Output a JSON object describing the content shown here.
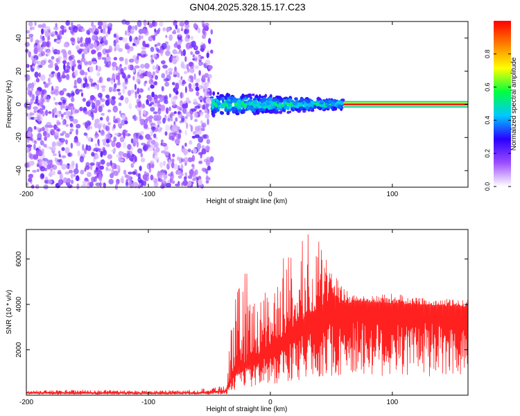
{
  "title": "GN04.2025.328.15.17.C23",
  "chart_data": [
    {
      "type": "heatmap",
      "xlabel": "Height of straight line (km)",
      "ylabel": "Frequency (Hz)",
      "xlim": [
        -200,
        162
      ],
      "ylim": [
        -50,
        50
      ],
      "x_ticks": [
        -200,
        -100,
        0,
        100
      ],
      "y_ticks": [
        -40,
        -20,
        0,
        20,
        40
      ],
      "colorbar": {
        "label": "Normalized spectral amplitude",
        "range": [
          0,
          1
        ],
        "ticks": [
          0.0,
          0.2,
          0.4,
          0.6,
          0.8
        ],
        "colors": [
          "#ffffff",
          "#9d4dff",
          "#2a00ff",
          "#00c8ff",
          "#00ff40",
          "#ffff00",
          "#ff8000",
          "#ff0000"
        ]
      },
      "regions": [
        {
          "x_range": [
            -200,
            -48
          ],
          "description": "noise"
        },
        {
          "x_range": [
            -48,
            60
          ],
          "center_hz": 0,
          "spread_hz": 8,
          "amplitude": [
            0.2,
            0.6
          ]
        },
        {
          "x_range": [
            60,
            162
          ],
          "center_hz": 0,
          "spread_hz": 2,
          "amplitude": [
            0.8,
            1.0
          ]
        }
      ],
      "grid": false
    },
    {
      "type": "line",
      "xlabel": "Height of straight line (km)",
      "ylabel": "SNR (10 * v/v)",
      "xlim": [
        -200,
        162
      ],
      "ylim": [
        0,
        7300
      ],
      "x_ticks": [
        -200,
        -100,
        0,
        100
      ],
      "y_ticks": [
        2000,
        4000,
        6000
      ],
      "series": [
        {
          "color": "#ff2020",
          "x": [
            -200,
            -150,
            -100,
            -60,
            -36,
            -33,
            -30,
            -20,
            -10,
            0,
            10,
            20,
            30,
            40,
            50,
            60,
            65,
            70,
            80,
            100,
            120,
            140,
            162
          ],
          "y": [
            120,
            110,
            100,
            110,
            200,
            700,
            1100,
            1500,
            1800,
            2200,
            2600,
            3000,
            3500,
            3800,
            4000,
            4100,
            4050,
            4150,
            4100,
            4050,
            4000,
            3950,
            3900
          ],
          "peak_y": [
            200,
            250,
            200,
            250,
            500,
            2800,
            4200,
            5600,
            4500,
            4800,
            6000,
            6500,
            7200,
            6800,
            5500,
            4800,
            4500,
            4400,
            4350,
            4500,
            4300,
            4250,
            4200
          ]
        }
      ],
      "grid": false
    }
  ]
}
